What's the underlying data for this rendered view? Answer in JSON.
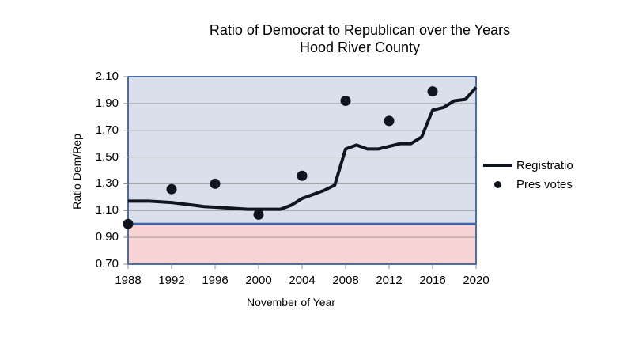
{
  "title": {
    "line1": "Ratio of Democrat to Republican over the Years",
    "line2": "Hood River County"
  },
  "chart_data": {
    "type": "line",
    "title": "Ratio of Democrat to Republican over the Years — Hood River County",
    "xlabel": "November of Year",
    "ylabel": "Ratio Dem/Rep",
    "xlim": [
      1988,
      2020
    ],
    "ylim": [
      0.7,
      2.1
    ],
    "x_tick_labels": [
      "1988",
      "1992",
      "1996",
      "2000",
      "2004",
      "2008",
      "2012",
      "2016",
      "2020"
    ],
    "y_tick_labels": [
      "2.10",
      "1.90",
      "1.70",
      "1.50",
      "1.30",
      "1.10",
      "0.90",
      "0.70"
    ],
    "grid": "horizontal",
    "legend_position": "right-outside",
    "threshold_line": 1.0,
    "bands": [
      {
        "from": 1.0,
        "to": 2.1,
        "color": "#d9e0ec"
      },
      {
        "from": 0.7,
        "to": 1.0,
        "color": "#f8d4d4"
      }
    ],
    "series": [
      {
        "name": "Registration",
        "type": "line",
        "color": "#10141f",
        "x": [
          1988,
          1989,
          1990,
          1991,
          1992,
          1993,
          1994,
          1995,
          1996,
          1997,
          1998,
          1999,
          2000,
          2001,
          2002,
          2003,
          2004,
          2005,
          2006,
          2007,
          2008,
          2009,
          2010,
          2011,
          2012,
          2013,
          2014,
          2015,
          2016,
          2017,
          2018,
          2019,
          2020
        ],
        "y": [
          1.17,
          1.17,
          1.17,
          1.165,
          1.16,
          1.15,
          1.14,
          1.13,
          1.125,
          1.12,
          1.115,
          1.11,
          1.11,
          1.11,
          1.11,
          1.14,
          1.19,
          1.22,
          1.25,
          1.29,
          1.56,
          1.59,
          1.56,
          1.56,
          1.58,
          1.6,
          1.6,
          1.65,
          1.85,
          1.87,
          1.92,
          1.93,
          2.02
        ]
      },
      {
        "name": "Pres votes",
        "type": "scatter",
        "color": "#10141f",
        "x": [
          1988,
          1992,
          1996,
          2000,
          2004,
          2008,
          2012,
          2016
        ],
        "y": [
          1.0,
          1.26,
          1.3,
          1.07,
          1.36,
          1.92,
          1.77,
          1.99
        ]
      }
    ]
  },
  "colors": {
    "plot_border": "#4a6da7",
    "threshold_line": "#3f63a5",
    "gridline": "#9e9e9e",
    "tick": "#8c8c8c",
    "band_above": "#d9e0ec",
    "band_below": "#f8d4d4",
    "series": "#10141f"
  }
}
